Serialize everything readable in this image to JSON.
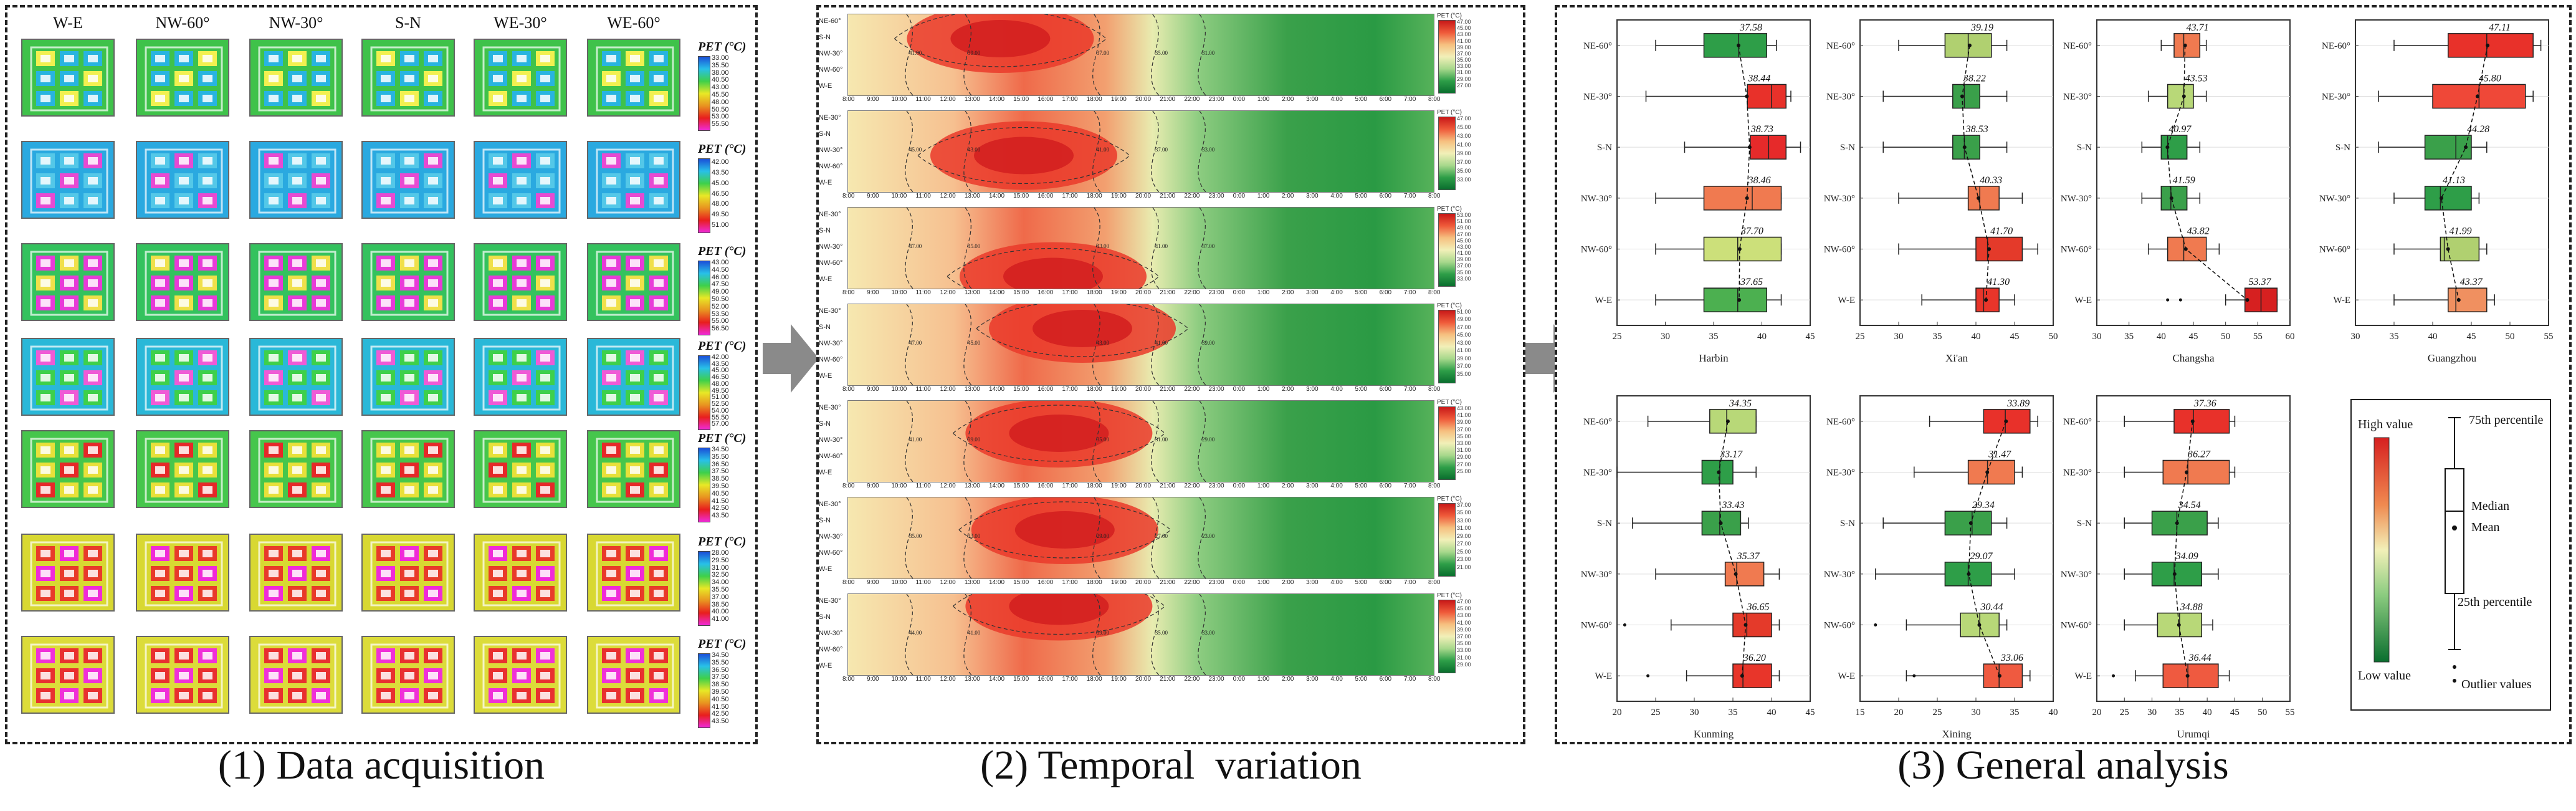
{
  "captions": {
    "p1": "(1) Data acquisition",
    "p2": "(2) Temporal  variation",
    "p3": "(3) General analysis"
  },
  "panel1": {
    "columns": [
      "W-E",
      "NW-60°",
      "NW-30°",
      "S-N",
      "WE-30°",
      "WE-60°"
    ],
    "legend_title": "PET (°C)",
    "rows": [
      {
        "bg": "#3fc24a",
        "inner": "#28b4e0",
        "accent": "#f2f050",
        "ticks": [
          "33.00",
          "35.50",
          "38.00",
          "40.50",
          "43.00",
          "45.50",
          "48.00",
          "50.50",
          "53.00",
          "55.50"
        ]
      },
      {
        "bg": "#2aa9e0",
        "inner": "#54c8e8",
        "accent": "#e84ad2",
        "ticks": [
          "42.00",
          "43.50",
          "45.00",
          "46.50",
          "48.00",
          "49.50",
          "51.00"
        ]
      },
      {
        "bg": "#34c25e",
        "inner": "#e83ad8",
        "accent": "#f0e04a",
        "ticks": [
          "43.00",
          "44.50",
          "46.00",
          "47.50",
          "49.00",
          "50.50",
          "52.00",
          "53.50",
          "55.00",
          "56.50"
        ]
      },
      {
        "bg": "#2ab8d8",
        "inner": "#3ed04a",
        "accent": "#f05ad6",
        "ticks": [
          "42.00",
          "43.50",
          "45.00",
          "46.50",
          "48.00",
          "49.50",
          "51.00",
          "52.50",
          "54.00",
          "55.50",
          "57.00"
        ]
      },
      {
        "bg": "#46c64c",
        "inner": "#e8e03a",
        "accent": "#e62828",
        "ticks": [
          "34.50",
          "35.50",
          "36.50",
          "37.50",
          "38.50",
          "39.50",
          "40.50",
          "41.50",
          "42.50",
          "43.50"
        ]
      },
      {
        "bg": "#d8d832",
        "inner": "#e83a2a",
        "accent": "#f02ad8",
        "ticks": [
          "28.00",
          "29.50",
          "31.00",
          "32.50",
          "34.00",
          "35.50",
          "37.00",
          "38.50",
          "40.00",
          "41.00"
        ]
      },
      {
        "bg": "#dcdc3a",
        "inner": "#e83030",
        "accent": "#f030d8",
        "ticks": [
          "34.50",
          "35.50",
          "36.50",
          "37.50",
          "38.50",
          "39.50",
          "40.50",
          "41.50",
          "42.50",
          "43.50"
        ]
      }
    ]
  },
  "panel2": {
    "row_labels": [
      "NE-60°",
      "S-N",
      "NW-30°",
      "NW-60°",
      "W-E"
    ],
    "row_labels_alt": [
      "NE-30°",
      "S-N",
      "NW-30°",
      "NW-60°",
      "W-E"
    ],
    "time_labels": [
      "8:00",
      "9:00",
      "10:00",
      "11:00",
      "12:00",
      "13:00",
      "14:00",
      "15:00",
      "16:00",
      "17:00",
      "18:00",
      "19:00",
      "20:00",
      "21:00",
      "22:00",
      "23:00",
      "0:00",
      "1:00",
      "2:00",
      "3:00",
      "4:00",
      "5:00",
      "6:00",
      "7:00",
      "8:00"
    ],
    "legend_title": "PET (°C)",
    "strips": [
      {
        "ticks": [
          "47.00",
          "45.00",
          "43.00",
          "41.00",
          "39.00",
          "37.00",
          "35.00",
          "33.00",
          "31.00",
          "29.00",
          "27.00"
        ],
        "hot": [
          0.26,
          0.3
        ],
        "contours": [
          "41.00",
          "39.00",
          "37.00",
          "35.00",
          "31.00"
        ]
      },
      {
        "ticks": [
          "47.00",
          "45.00",
          "43.00",
          "41.00",
          "39.00",
          "37.00",
          "35.00",
          "33.00"
        ],
        "hot": [
          0.3,
          0.55
        ],
        "contours": [
          "45.00",
          "43.00",
          "41.00",
          "37.00",
          "33.00"
        ]
      },
      {
        "ticks": [
          "53.00",
          "51.00",
          "49.00",
          "47.00",
          "45.00",
          "43.00",
          "41.00",
          "39.00",
          "37.00",
          "35.00",
          "33.00"
        ],
        "hot": [
          0.35,
          0.85
        ],
        "contours": [
          "47.00",
          "45.00",
          "43.00",
          "41.00",
          "37.00"
        ]
      },
      {
        "ticks": [
          "51.00",
          "49.00",
          "47.00",
          "45.00",
          "43.00",
          "41.00",
          "39.00",
          "37.00",
          "35.00"
        ],
        "hot": [
          0.4,
          0.3
        ],
        "contours": [
          "47.00",
          "45.00",
          "43.00",
          "41.00",
          "39.00"
        ]
      },
      {
        "ticks": [
          "43.00",
          "41.00",
          "39.00",
          "37.00",
          "35.00",
          "33.00",
          "31.00",
          "29.00",
          "27.00",
          "25.00"
        ],
        "hot": [
          0.36,
          0.4
        ],
        "contours": [
          "41.00",
          "39.00",
          "35.00",
          "31.00",
          "29.00"
        ]
      },
      {
        "ticks": [
          "37.00",
          "35.00",
          "33.00",
          "31.00",
          "29.00",
          "27.00",
          "25.00",
          "23.00",
          "21.00"
        ],
        "hot": [
          0.37,
          0.4
        ],
        "contours": [
          "35.00",
          "33.00",
          "29.00",
          "27.00",
          "23.00"
        ]
      },
      {
        "ticks": [
          "47.00",
          "45.00",
          "43.00",
          "41.00",
          "39.00",
          "37.00",
          "35.00",
          "33.00",
          "31.00",
          "29.00"
        ],
        "hot": [
          0.36,
          0.15
        ],
        "contours": [
          "44.00",
          "41.00",
          "39.00",
          "35.00",
          "33.00"
        ]
      }
    ]
  },
  "panel3": {
    "categories": [
      "NE-60°",
      "NE-30°",
      "S-N",
      "NW-30°",
      "NW-60°",
      "W-E"
    ],
    "charts": [
      {
        "city": "Harbin",
        "xlim": [
          25,
          45
        ],
        "xticks": [
          25,
          30,
          35,
          40,
          45
        ],
        "means": [
          37.58,
          38.44,
          38.73,
          38.46,
          37.7,
          37.65
        ],
        "colors": [
          "#2e9e48",
          "#e8312a",
          "#e62a2a",
          "#f07a50",
          "#cce07a",
          "#4cb050"
        ],
        "q1": [
          34,
          38.5,
          38.8,
          34,
          34,
          34
        ],
        "q3": [
          40.5,
          42.5,
          42.5,
          42,
          42,
          40.5
        ],
        "wl": [
          29,
          28,
          32,
          29,
          29,
          29
        ],
        "wh": [
          41.5,
          43,
          44,
          42,
          42,
          42
        ],
        "med": [
          37.6,
          41,
          40.7,
          39,
          37.5,
          37.5
        ]
      },
      {
        "city": "Xi'an",
        "xlim": [
          25,
          50
        ],
        "xticks": [
          25,
          30,
          35,
          40,
          45,
          50
        ],
        "means": [
          39.19,
          38.22,
          38.53,
          40.33,
          41.7,
          41.3
        ],
        "colors": [
          "#b0d070",
          "#3aa04a",
          "#3aa04a",
          "#f07a50",
          "#e43a2a",
          "#e8352a"
        ],
        "q1": [
          36,
          37,
          37,
          39,
          40,
          40
        ],
        "q3": [
          42,
          40.5,
          40.5,
          43,
          46,
          43
        ],
        "wl": [
          30,
          28,
          28,
          30,
          30,
          33
        ],
        "wh": [
          44,
          44,
          44,
          46,
          48,
          45
        ],
        "med": [
          39,
          38.5,
          38.5,
          40.5,
          41.5,
          41
        ],
        "out": []
      },
      {
        "city": "Changsha",
        "xlim": [
          30,
          60
        ],
        "xticks": [
          30,
          35,
          40,
          45,
          50,
          55,
          60
        ],
        "means": [
          43.71,
          43.53,
          40.97,
          41.59,
          43.82,
          53.37
        ],
        "colors": [
          "#f07a50",
          "#b8d878",
          "#2e9e48",
          "#3aa04a",
          "#f07a50",
          "#d62020"
        ],
        "q1": [
          42,
          41,
          40,
          40,
          41,
          53
        ],
        "q3": [
          46,
          45,
          44,
          44,
          47,
          58
        ],
        "wl": [
          40,
          38,
          37,
          37,
          38,
          50
        ],
        "wh": [
          47,
          47,
          46,
          46,
          49,
          58
        ],
        "med": [
          43.5,
          43.5,
          41,
          41.5,
          43.5,
          55.5
        ],
        "out": [
          [
            5,
            41
          ],
          [
            5,
            43
          ]
        ]
      },
      {
        "city": "Guangzhou",
        "xlim": [
          30,
          55
        ],
        "xticks": [
          30,
          35,
          40,
          45,
          50,
          55
        ],
        "means": [
          47.11,
          45.8,
          44.28,
          41.13,
          41.99,
          43.37
        ],
        "colors": [
          "#e8312a",
          "#ef4838",
          "#3aa04a",
          "#2e9e48",
          "#b0d070",
          "#f09060"
        ],
        "q1": [
          42,
          40,
          39,
          39,
          41,
          42
        ],
        "q3": [
          53,
          52,
          45,
          45,
          46,
          47
        ],
        "wl": [
          35,
          33,
          33,
          35,
          35,
          35
        ],
        "wh": [
          54,
          53,
          47,
          46,
          47,
          48
        ],
        "med": [
          47,
          46,
          43,
          41,
          41.5,
          43
        ],
        "out": []
      },
      {
        "city": "Kunming",
        "xlim": [
          20,
          45
        ],
        "xticks": [
          20,
          25,
          30,
          35,
          40,
          45
        ],
        "means": [
          34.35,
          33.17,
          33.43,
          35.37,
          36.65,
          36.2
        ],
        "colors": [
          "#b8d878",
          "#2e9e48",
          "#3aa04a",
          "#f07a50",
          "#e43a2a",
          "#e8352a"
        ],
        "q1": [
          32,
          31,
          31,
          34,
          35,
          35
        ],
        "q3": [
          38,
          35,
          36,
          39,
          40,
          40
        ],
        "wl": [
          24,
          20,
          22,
          25,
          27,
          29
        ],
        "wh": [
          38,
          38,
          37,
          41,
          41,
          41
        ],
        "med": [
          34.2,
          33.3,
          33.3,
          35.5,
          36.8,
          36.3
        ],
        "out": [
          [
            4,
            21
          ],
          [
            5,
            24
          ]
        ]
      },
      {
        "city": "Xining",
        "xlim": [
          15,
          40
        ],
        "xticks": [
          15,
          20,
          25,
          30,
          35,
          40
        ],
        "means": [
          33.89,
          31.47,
          29.34,
          29.07,
          30.44,
          33.06
        ],
        "colors": [
          "#e8312a",
          "#f07a50",
          "#3aa04a",
          "#2e9e48",
          "#b8d878",
          "#ef5a40"
        ],
        "q1": [
          31,
          29,
          26,
          26,
          28,
          31
        ],
        "q3": [
          37,
          35,
          32,
          32,
          33,
          36
        ],
        "wl": [
          24,
          22,
          18,
          17,
          21,
          21
        ],
        "wh": [
          38,
          36,
          34,
          35,
          34,
          37
        ],
        "med": [
          33.8,
          31.5,
          29.5,
          29,
          30.5,
          33
        ],
        "out": [
          [
            4,
            17
          ],
          [
            5,
            22
          ]
        ]
      },
      {
        "city": "Urumqi",
        "xlim": [
          20,
          55
        ],
        "xticks": [
          20,
          25,
          30,
          35,
          40,
          45,
          50,
          55
        ],
        "means": [
          37.36,
          36.27,
          34.54,
          34.09,
          34.88,
          36.44
        ],
        "colors": [
          "#e8312a",
          "#f07a50",
          "#3aa04a",
          "#2e9e48",
          "#b8d878",
          "#ef5a40"
        ],
        "q1": [
          34,
          32,
          30,
          30,
          31,
          32
        ],
        "q3": [
          44,
          44,
          40,
          39,
          39,
          42
        ],
        "wl": [
          25,
          25,
          25,
          25,
          25,
          27
        ],
        "wh": [
          45,
          45,
          42,
          42,
          41,
          44
        ],
        "med": [
          37.5,
          36.5,
          34.5,
          34,
          35,
          36.5
        ],
        "out": [
          [
            5,
            23
          ]
        ]
      }
    ],
    "key": {
      "high": "High value",
      "low": "Low value",
      "p75": "75th percentile",
      "p25": "25th percentile",
      "median": "Median",
      "mean": "Mean",
      "outlier": "Outlier values"
    }
  }
}
